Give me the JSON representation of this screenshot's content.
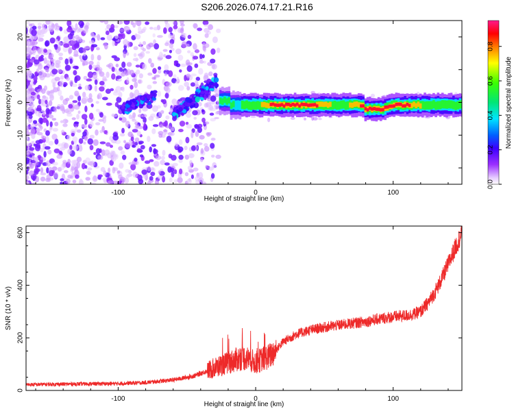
{
  "title": "S206.2026.074.17.21.R16",
  "colors": {
    "snr_line": "#ee2a2a",
    "frame": "#000000",
    "background": "#ffffff"
  },
  "chart_data": [
    {
      "type": "heatmap",
      "name": "spectrogram",
      "xlabel": "Height of straight line (km)",
      "ylabel": "Frequency (Hz)",
      "xlim": [
        -167,
        150
      ],
      "ylim": [
        -25,
        25
      ],
      "xticks": [
        "-100",
        "0",
        "100"
      ],
      "xtick_values": [
        -100,
        0,
        100
      ],
      "yticks": [
        "-20",
        "-10",
        "0",
        "10",
        "20"
      ],
      "ytick_values": [
        -20,
        -10,
        0,
        10,
        20
      ],
      "colorbar": {
        "label": "Normalized spectral amplitude",
        "range": [
          0,
          0.95
        ],
        "ticks": [
          "0.0",
          "0.2",
          "0.4",
          "0.6",
          "0.8"
        ],
        "tick_values": [
          0.0,
          0.2,
          0.4,
          0.6,
          0.8
        ],
        "colormap": "rainbow (purple-blue-cyan-green-yellow-red-magenta)"
      },
      "features": [
        {
          "description": "scattered low-amplitude noise",
          "x_range": [
            -167,
            -40
          ],
          "freq_range": [
            -25,
            25
          ],
          "amplitude": 0.05
        },
        {
          "description": "tilted signal segment",
          "x_range": [
            -95,
            -75
          ],
          "freq_range": [
            -3,
            3
          ],
          "amplitude": 0.15
        },
        {
          "description": "rising signal segment",
          "x_range": [
            -60,
            -30
          ],
          "freq_range": [
            -5,
            8
          ],
          "amplitude": 0.2
        },
        {
          "description": "stable carrier line",
          "x_range": [
            -25,
            150
          ],
          "freq_center": -1,
          "amplitude": 0.9
        }
      ]
    },
    {
      "type": "line",
      "name": "snr",
      "xlabel": "Height of straight line (km)",
      "ylabel": "SNR (10 * v/v)",
      "xlim": [
        -167,
        150
      ],
      "ylim": [
        0,
        625
      ],
      "xticks": [
        "-100",
        "0",
        "100"
      ],
      "xtick_values": [
        -100,
        0,
        100
      ],
      "yticks": [
        "0",
        "200",
        "400",
        "600"
      ],
      "ytick_values": [
        0,
        200,
        400,
        600
      ],
      "series": [
        {
          "name": "SNR",
          "x": [
            -167,
            -140,
            -120,
            -100,
            -80,
            -60,
            -45,
            -35,
            -28,
            -20,
            -15,
            -10,
            -5,
            0,
            5,
            10,
            15,
            20,
            30,
            40,
            50,
            60,
            70,
            80,
            90,
            100,
            110,
            115,
            120,
            125,
            130,
            135,
            140,
            145,
            150
          ],
          "y": [
            22,
            24,
            25,
            26,
            30,
            40,
            55,
            75,
            90,
            105,
            115,
            125,
            120,
            105,
            120,
            130,
            155,
            185,
            215,
            230,
            240,
            248,
            255,
            262,
            272,
            280,
            285,
            290,
            300,
            330,
            370,
            420,
            480,
            540,
            600
          ]
        }
      ]
    }
  ]
}
